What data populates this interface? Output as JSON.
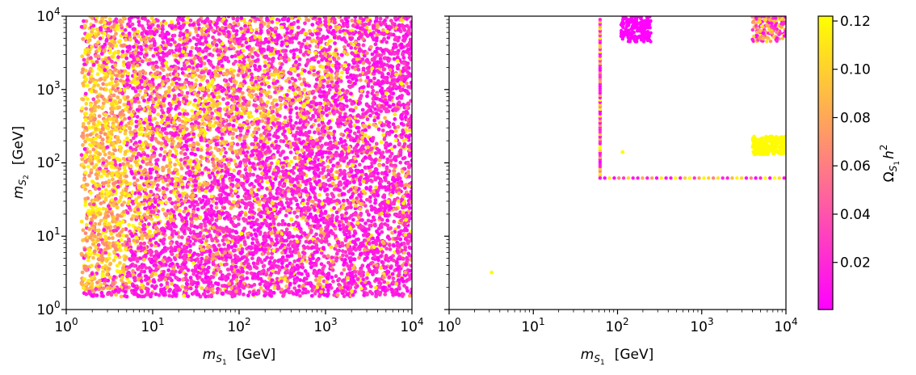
{
  "chart_data": [
    {
      "type": "scatter",
      "panel": "left",
      "xscale": "log",
      "yscale": "log",
      "xlim": [
        1,
        10000
      ],
      "ylim": [
        1,
        10000
      ],
      "xlabel": {
        "main": "m",
        "sub1": "S",
        "sub2": "1",
        "unit": "[GeV]"
      },
      "ylabel": {
        "main": "m",
        "sub1": "S",
        "sub2": "2",
        "unit": "[GeV]"
      },
      "xticks": [
        {
          "base": "10",
          "exp": "0"
        },
        {
          "base": "10",
          "exp": "1"
        },
        {
          "base": "10",
          "exp": "2"
        },
        {
          "base": "10",
          "exp": "3"
        },
        {
          "base": "10",
          "exp": "4"
        }
      ],
      "yticks": [
        {
          "base": "10",
          "exp": "0"
        },
        {
          "base": "10",
          "exp": "1"
        },
        {
          "base": "10",
          "exp": "2"
        },
        {
          "base": "10",
          "exp": "3"
        },
        {
          "base": "10",
          "exp": "4"
        }
      ],
      "description": "dense random scan; m_S1 from ~1.5 to 10^4 GeV, m_S2 from ~1.5 to 10^4 GeV; low relic density (magenta) dominates lower-right half, high (yellow) upper-left",
      "filled_region": {
        "x_min": 1.5,
        "x_max": 10000,
        "y_min": 1.5,
        "y_max": 10000
      }
    },
    {
      "type": "scatter",
      "panel": "right",
      "xscale": "log",
      "yscale": "log",
      "xlim": [
        1,
        10000
      ],
      "ylim": [
        1,
        10000
      ],
      "xlabel": {
        "main": "m",
        "sub1": "S",
        "sub2": "1",
        "unit": "[GeV]"
      },
      "xticks": [
        {
          "base": "10",
          "exp": "0"
        },
        {
          "base": "10",
          "exp": "1"
        },
        {
          "base": "10",
          "exp": "2"
        },
        {
          "base": "10",
          "exp": "3"
        },
        {
          "base": "10",
          "exp": "4"
        }
      ],
      "points": [
        {
          "x": 3.2,
          "y": 3.2,
          "v": 0.12
        },
        {
          "x": 115,
          "y": 140,
          "v": 0.12
        }
      ],
      "clusters": [
        {
          "name": "vertical-line",
          "x": 62,
          "y_range": [
            62,
            9000
          ],
          "v_mix": "mixed"
        },
        {
          "name": "horizontal-line",
          "y": 62,
          "x_range": [
            62,
            9500
          ],
          "v_mix": "mixed"
        },
        {
          "name": "top-blob",
          "x_range": [
            110,
            250
          ],
          "y_range": [
            4500,
            10000
          ],
          "v": 0.002
        },
        {
          "name": "top-right-blob",
          "x_range": [
            4000,
            10000
          ],
          "y_range": [
            4500,
            10000
          ],
          "v_mix": "mixed"
        },
        {
          "name": "right-yellow-blob",
          "x_range": [
            4000,
            10000
          ],
          "y_range": [
            130,
            230
          ],
          "v": 0.12
        }
      ]
    }
  ],
  "colorbar": {
    "label_main": "Ω",
    "label_sub1": "S",
    "label_sub2": "1",
    "label_h": "h",
    "label_exp": "2",
    "vmin": 0.0005,
    "vmax": 0.122,
    "ticks": [
      {
        "value": 0.02,
        "label": "0.02"
      },
      {
        "value": 0.04,
        "label": "0.04"
      },
      {
        "value": 0.06,
        "label": "0.06"
      },
      {
        "value": 0.08,
        "label": "0.08"
      },
      {
        "value": 0.1,
        "label": "0.10"
      },
      {
        "value": 0.12,
        "label": "0.12"
      }
    ],
    "colors": {
      "low": "#ff00ff",
      "high": "#ffff00"
    }
  }
}
